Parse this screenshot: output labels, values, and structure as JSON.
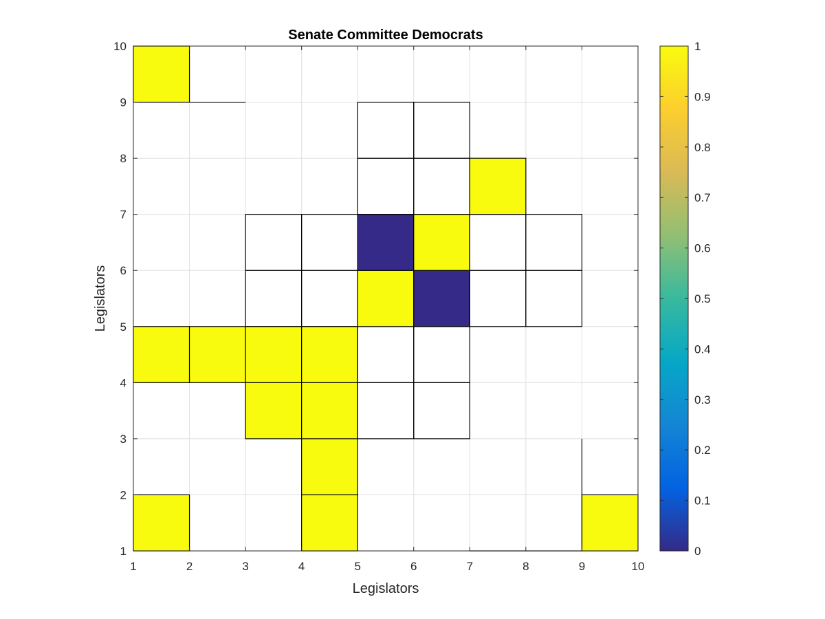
{
  "chart_data": {
    "type": "heatmap",
    "title": "Senate Committee Democrats",
    "xlabel": "Legislators",
    "ylabel": "Legislators",
    "xlim": [
      1,
      10
    ],
    "ylim": [
      1,
      10
    ],
    "x_ticks": [
      "1",
      "2",
      "3",
      "4",
      "5",
      "6",
      "7",
      "8",
      "9",
      "10"
    ],
    "y_ticks": [
      "1",
      "2",
      "3",
      "4",
      "5",
      "6",
      "7",
      "8",
      "9",
      "10"
    ],
    "grid": true,
    "colormap": "parula",
    "colorbar": {
      "location": "right",
      "range": [
        0,
        1
      ],
      "ticks": [
        "0",
        "0.1",
        "0.2",
        "0.3",
        "0.4",
        "0.5",
        "0.6",
        "0.7",
        "0.8",
        "0.9",
        "1"
      ]
    },
    "note_cells": "each cell spans [x, x+1] x [y, y+1]; value null = blank (NaN)",
    "cells": [
      {
        "x": 1,
        "y": 1,
        "value": 1
      },
      {
        "x": 4,
        "y": 1,
        "value": 1
      },
      {
        "x": 9,
        "y": 1,
        "value": 1
      },
      {
        "x": 4,
        "y": 2,
        "value": 1
      },
      {
        "x": 3,
        "y": 3,
        "value": 1
      },
      {
        "x": 4,
        "y": 3,
        "value": 1
      },
      {
        "x": 5,
        "y": 3,
        "value": null
      },
      {
        "x": 6,
        "y": 3,
        "value": null
      },
      {
        "x": 1,
        "y": 4,
        "value": 1
      },
      {
        "x": 2,
        "y": 4,
        "value": 1
      },
      {
        "x": 3,
        "y": 4,
        "value": 1
      },
      {
        "x": 4,
        "y": 4,
        "value": 1
      },
      {
        "x": 5,
        "y": 4,
        "value": null
      },
      {
        "x": 6,
        "y": 4,
        "value": null
      },
      {
        "x": 3,
        "y": 5,
        "value": null
      },
      {
        "x": 4,
        "y": 5,
        "value": null
      },
      {
        "x": 5,
        "y": 5,
        "value": 1
      },
      {
        "x": 6,
        "y": 5,
        "value": 0
      },
      {
        "x": 7,
        "y": 5,
        "value": null
      },
      {
        "x": 8,
        "y": 5,
        "value": null
      },
      {
        "x": 3,
        "y": 6,
        "value": null
      },
      {
        "x": 4,
        "y": 6,
        "value": null
      },
      {
        "x": 5,
        "y": 6,
        "value": 0
      },
      {
        "x": 6,
        "y": 6,
        "value": 1
      },
      {
        "x": 7,
        "y": 6,
        "value": null
      },
      {
        "x": 8,
        "y": 6,
        "value": null
      },
      {
        "x": 5,
        "y": 7,
        "value": null
      },
      {
        "x": 6,
        "y": 7,
        "value": null
      },
      {
        "x": 7,
        "y": 7,
        "value": 1
      },
      {
        "x": 5,
        "y": 8,
        "value": null
      },
      {
        "x": 6,
        "y": 8,
        "value": null
      },
      {
        "x": 1,
        "y": 9,
        "value": 1
      }
    ],
    "extra_edges": [
      {
        "x1": 2,
        "y1": 9,
        "x2": 3,
        "y2": 9
      },
      {
        "x1": 9,
        "y1": 1,
        "x2": 9,
        "y2": 3
      },
      {
        "x1": 7,
        "y1": 1,
        "x2": 9,
        "y2": 1
      }
    ],
    "colors": {
      "high": "#f9fb0e",
      "low": "#352a87",
      "grid": "#dedede",
      "edge": "#000000"
    }
  }
}
